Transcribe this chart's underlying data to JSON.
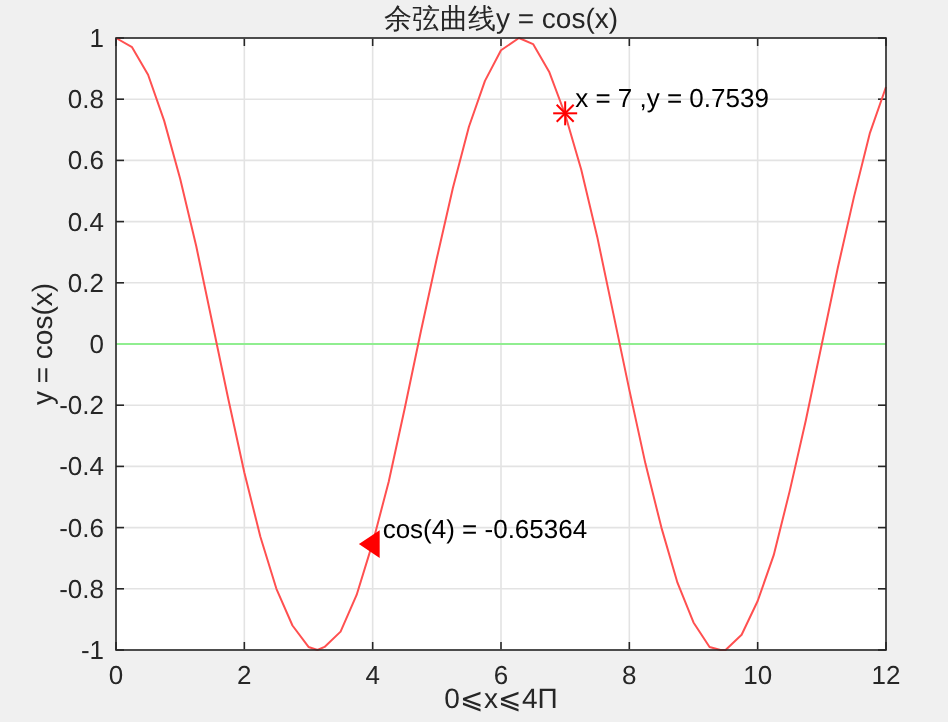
{
  "chart_data": {
    "type": "line",
    "title": "余弦曲线y = cos(x)",
    "xlabel": "0⩽x⩽4Π",
    "ylabel": "y = cos(x)",
    "xlim": [
      0,
      12
    ],
    "ylim": [
      -1,
      1
    ],
    "xticks": [
      0,
      2,
      4,
      6,
      8,
      10,
      12
    ],
    "yticks": [
      -1,
      -0.8,
      -0.6,
      -0.4,
      -0.2,
      0,
      0.2,
      0.4,
      0.6,
      0.8,
      1
    ],
    "grid": true,
    "series": [
      {
        "type": "line",
        "color": "#ff5050",
        "marker": "none",
        "x": [
          0,
          0.25,
          0.5,
          0.75,
          1,
          1.25,
          1.5,
          1.75,
          2,
          2.25,
          2.5,
          2.75,
          3,
          3.14,
          3.25,
          3.5,
          3.75,
          4,
          4.25,
          4.5,
          4.75,
          5,
          5.25,
          5.5,
          5.75,
          6,
          6.28,
          6.5,
          6.75,
          7,
          7.25,
          7.5,
          7.75,
          8,
          8.25,
          8.5,
          8.75,
          9,
          9.25,
          9.42,
          9.5,
          9.75,
          10,
          10.25,
          10.5,
          10.75,
          11,
          11.25,
          11.5,
          11.75,
          12
        ],
        "values": [
          1,
          0.97,
          0.88,
          0.73,
          0.54,
          0.32,
          0.07,
          -0.18,
          -0.42,
          -0.63,
          -0.8,
          -0.92,
          -0.99,
          -1,
          -0.99,
          -0.94,
          -0.82,
          -0.65,
          -0.45,
          -0.21,
          0.04,
          0.28,
          0.51,
          0.71,
          0.86,
          0.96,
          1,
          0.98,
          0.89,
          0.75,
          0.57,
          0.35,
          0.1,
          -0.15,
          -0.39,
          -0.6,
          -0.78,
          -0.91,
          -0.99,
          -1,
          -1,
          -0.95,
          -0.84,
          -0.69,
          -0.48,
          -0.25,
          0,
          0.25,
          0.48,
          0.69,
          0.84
        ]
      },
      {
        "type": "scatter",
        "color": "#ff0000",
        "marker": "cross",
        "x": [
          7
        ],
        "values": [
          0.7539
        ]
      },
      {
        "type": "scatter",
        "color": "#ff0000",
        "marker": "triangle",
        "x": [
          4
        ],
        "values": [
          -0.65364
        ]
      }
    ],
    "ref_lines": [
      {
        "axis": "y",
        "value": 0,
        "color": "#90ee90"
      }
    ],
    "annotations": [
      {
        "text": "x = 7 ,y = 0.7539",
        "x": 7,
        "y": 0.7539
      },
      {
        "text": "cos(4) = -0.65364",
        "x": 4,
        "y": -0.65364
      }
    ]
  }
}
